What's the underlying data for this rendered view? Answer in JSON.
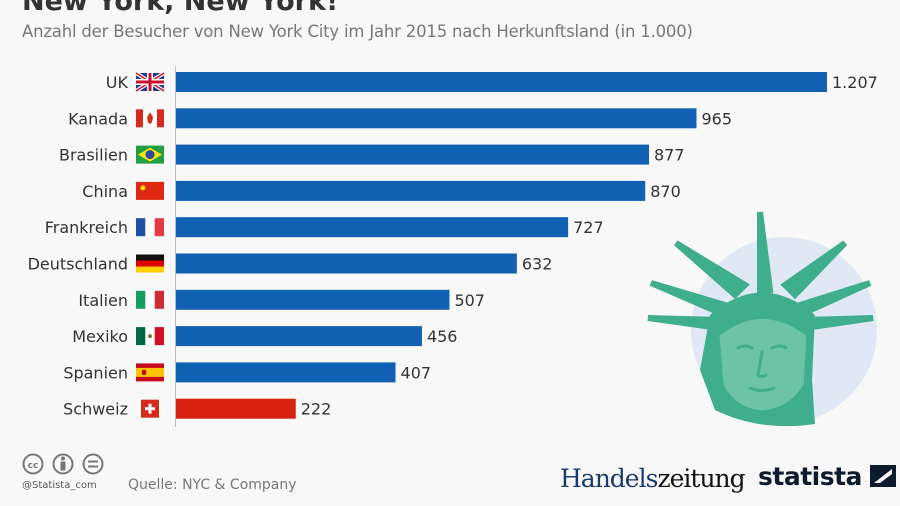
{
  "title": "New York, New York!",
  "subtitle": "Anzahl der Besucher von New York City im Jahr 2015 nach Herkunftsland (in 1.000)",
  "chart_data": {
    "type": "bar",
    "orientation": "horizontal",
    "categories": [
      "UK",
      "Kanada",
      "Brasilien",
      "China",
      "Frankreich",
      "Deutschland",
      "Italien",
      "Mexiko",
      "Spanien",
      "Schweiz"
    ],
    "values": [
      1207,
      965,
      877,
      870,
      727,
      632,
      507,
      456,
      407,
      222
    ],
    "value_labels": [
      "1.207",
      "965",
      "877",
      "870",
      "727",
      "632",
      "507",
      "456",
      "407",
      "222"
    ],
    "flags": [
      "uk-flag-icon",
      "canada-flag-icon",
      "brazil-flag-icon",
      "china-flag-icon",
      "france-flag-icon",
      "germany-flag-icon",
      "italy-flag-icon",
      "mexico-flag-icon",
      "spain-flag-icon",
      "switzerland-flag-icon"
    ],
    "colors": [
      "#1060b4",
      "#1060b4",
      "#1060b4",
      "#1060b4",
      "#1060b4",
      "#1060b4",
      "#1060b4",
      "#1060b4",
      "#1060b4",
      "#d8230f"
    ],
    "xlim": [
      0,
      1207
    ],
    "grid": false
  },
  "footer": {
    "handle": "@Statista_com",
    "source": "Quelle: NYC & Company",
    "brand1_a": "Handels",
    "brand1_b": "zeitung",
    "brand2": "statista"
  }
}
